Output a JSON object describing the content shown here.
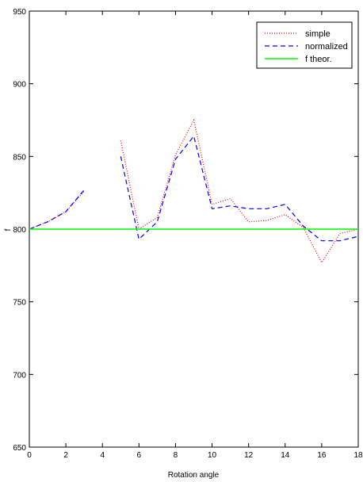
{
  "chart_data": {
    "type": "line",
    "title": "",
    "xlabel": "Rotation angle",
    "ylabel": "f",
    "xlim": [
      0,
      18
    ],
    "ylim": [
      650,
      950
    ],
    "xticks": [
      0,
      2,
      4,
      6,
      8,
      10,
      12,
      14,
      16,
      18
    ],
    "yticks": [
      650,
      700,
      750,
      800,
      850,
      900,
      950
    ],
    "grid": false,
    "legend_position": "top-right",
    "series": [
      {
        "name": "simple",
        "style": "dotted",
        "color": "#ff0000",
        "x": [
          0,
          1,
          2,
          3,
          4,
          5,
          6,
          7,
          8,
          9,
          10,
          11,
          12,
          13,
          14,
          15,
          16,
          17,
          18
        ],
        "y": [
          800,
          805,
          812,
          826,
          null,
          861,
          800,
          808,
          851,
          875,
          817,
          821,
          805,
          806,
          810,
          801,
          777,
          797,
          800
        ]
      },
      {
        "name": "normalized",
        "style": "dashed",
        "color": "#0000ff",
        "x": [
          0,
          1,
          2,
          3,
          4,
          5,
          6,
          7,
          8,
          9,
          10,
          11,
          12,
          13,
          14,
          15,
          16,
          17,
          18
        ],
        "y": [
          800,
          805,
          812,
          827,
          null,
          850,
          793,
          805,
          848,
          864,
          814,
          816,
          814,
          814,
          817,
          802,
          792,
          792,
          795
        ]
      },
      {
        "name": "f theor.",
        "style": "solid",
        "color": "#00ff00",
        "x": [
          0,
          18
        ],
        "y": [
          800,
          800
        ]
      }
    ]
  }
}
